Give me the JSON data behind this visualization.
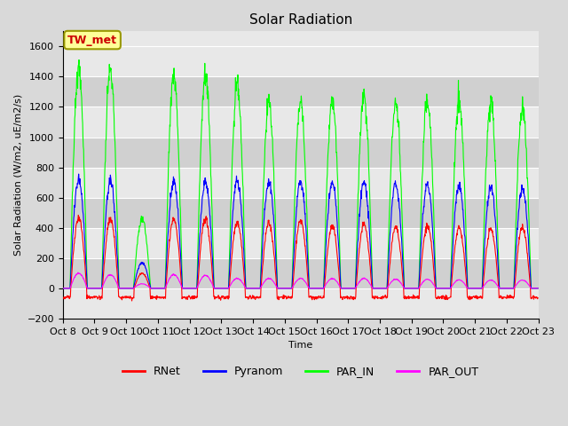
{
  "title": "Solar Radiation",
  "ylabel": "Solar Radiation (W/m2, uE/m2/s)",
  "xlabel": "Time",
  "ylim": [
    -200,
    1700
  ],
  "yticks": [
    -200,
    0,
    200,
    400,
    600,
    800,
    1000,
    1200,
    1400,
    1600
  ],
  "xtick_labels": [
    "Oct 8",
    "Oct 9",
    "Oct 10",
    "Oct 11",
    "Oct 12",
    "Oct 13",
    "Oct 14",
    "Oct 15",
    "Oct 16",
    "Oct 17",
    "Oct 18",
    "Oct 19",
    "Oct 20",
    "Oct 21",
    "Oct 22",
    "Oct 23"
  ],
  "line_colors": {
    "RNet": "#ff0000",
    "Pyranom": "#0000ff",
    "PAR_IN": "#00ff00",
    "PAR_OUT": "#ff00ff"
  },
  "legend_label": "TW_met",
  "legend_label_color": "#cc0000",
  "legend_box_facecolor": "#ffff99",
  "legend_box_edgecolor": "#999900",
  "bg_color": "#d9d9d9",
  "plot_bg_color": "#e8e8e8",
  "band_color_dark": "#d0d0d0",
  "band_color_light": "#e8e8e8",
  "n_days": 15,
  "points_per_day": 96,
  "peaks_rnet": [
    470,
    460,
    100,
    460,
    460,
    440,
    430,
    450,
    410,
    420,
    400,
    410,
    400,
    390,
    400
  ],
  "peaks_pyranom": [
    720,
    710,
    170,
    700,
    700,
    710,
    710,
    710,
    700,
    700,
    690,
    690,
    680,
    670,
    660
  ],
  "peaks_par_in": [
    1460,
    1430,
    460,
    1410,
    1400,
    1340,
    1220,
    1220,
    1250,
    1260,
    1240,
    1240,
    1240,
    1230,
    1200
  ],
  "peaks_par_out": [
    100,
    90,
    30,
    90,
    85,
    65,
    65,
    65,
    65,
    65,
    60,
    60,
    55,
    55,
    55
  ],
  "night_rnet": -60,
  "grid_color": "#ffffff",
  "linewidth": 0.8,
  "title_fontsize": 11,
  "label_fontsize": 8,
  "tick_fontsize": 8
}
